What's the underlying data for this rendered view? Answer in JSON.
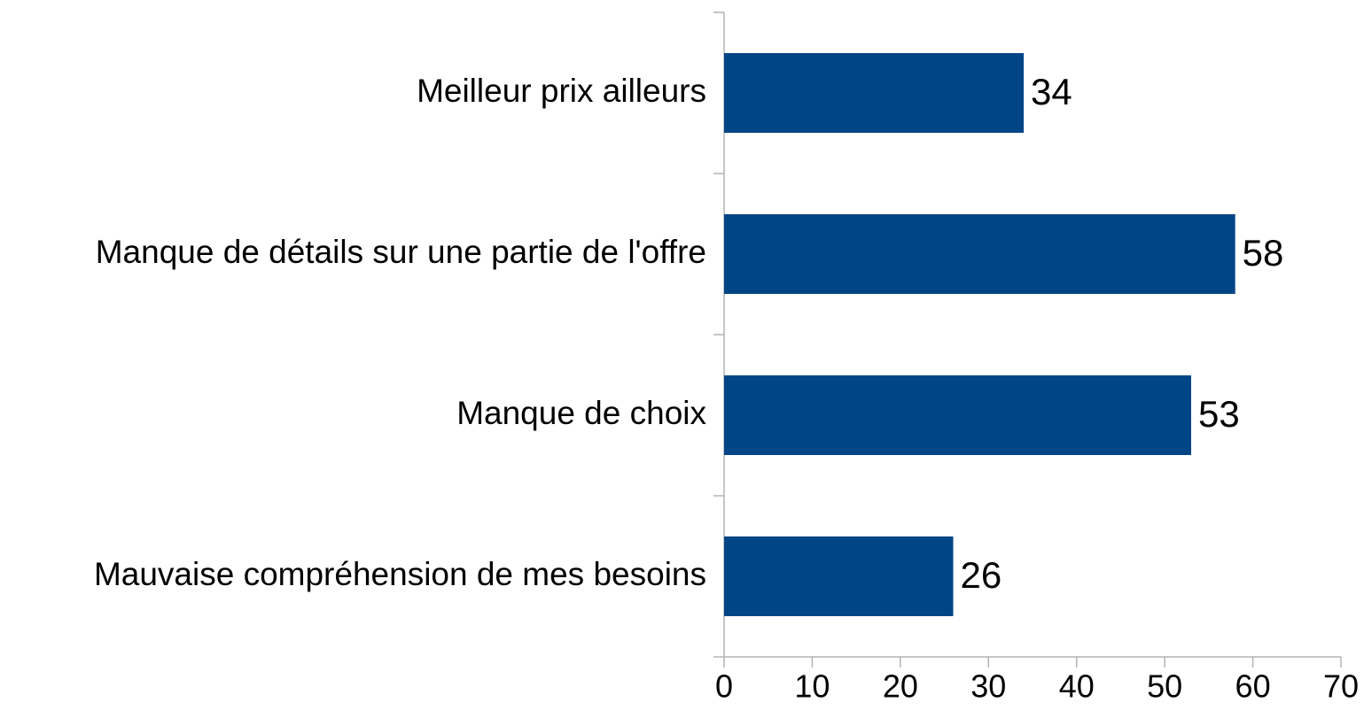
{
  "chart_data": {
    "type": "bar",
    "orientation": "horizontal",
    "categories": [
      "Meilleur prix ailleurs",
      "Manque de détails sur une partie de l'offre",
      "Manque de choix",
      "Mauvaise compréhension de mes besoins"
    ],
    "values": [
      34,
      58,
      53,
      26
    ],
    "color": "#004586",
    "xlim": [
      0,
      70
    ],
    "xticks": [
      0,
      10,
      20,
      30,
      40,
      50,
      60,
      70
    ]
  }
}
